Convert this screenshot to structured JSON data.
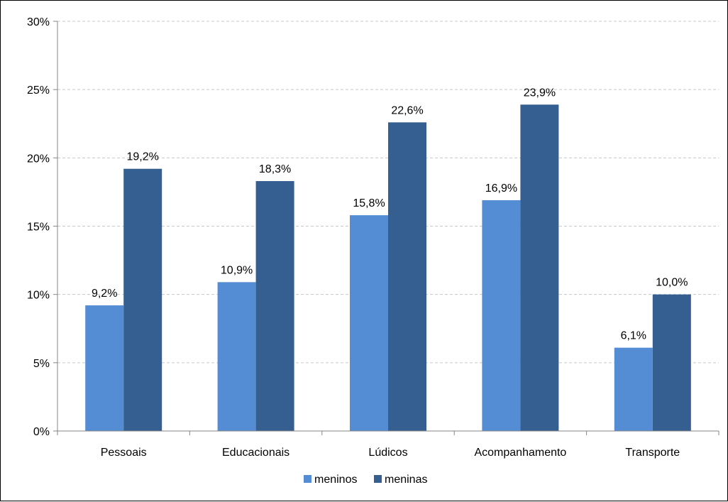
{
  "chart_data": {
    "type": "bar",
    "title": "",
    "xlabel": "",
    "ylabel": "",
    "categories": [
      "Pessoais",
      "Educacionais",
      "Lúdicos",
      "Acompanhamento",
      "Transporte"
    ],
    "series": [
      {
        "name": "meninos",
        "color": "#548dd4",
        "values": [
          9.2,
          10.9,
          15.8,
          16.9,
          6.1
        ],
        "labels": [
          "9,2%",
          "10,9%",
          "15,8%",
          "16,9%",
          "6,1%"
        ]
      },
      {
        "name": "meninas",
        "color": "#365f91",
        "values": [
          19.2,
          18.3,
          22.6,
          23.9,
          10.0
        ],
        "labels": [
          "19,2%",
          "18,3%",
          "22,6%",
          "23,9%",
          "10,0%"
        ]
      }
    ],
    "ylim": [
      0,
      30
    ],
    "yticks": [
      0,
      5,
      10,
      15,
      20,
      25,
      30
    ],
    "ytick_labels": [
      "0%",
      "5%",
      "10%",
      "15%",
      "20%",
      "25%",
      "30%"
    ],
    "grid": true,
    "legend_position": "bottom-center"
  }
}
